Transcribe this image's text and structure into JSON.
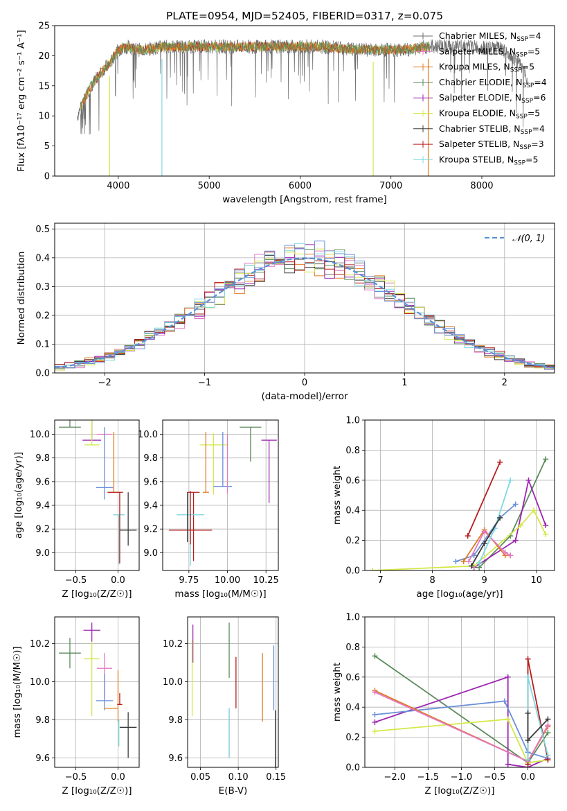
{
  "colors": {
    "chab_miles": "#6e6e6e",
    "salp_miles": "#e377c2",
    "krou_miles": "#e07b22",
    "chab_elodie": "#5b8a5b",
    "salp_elodie": "#9c27b0",
    "krou_elodie": "#d4e848",
    "chab_stelib": "#3a3a3a",
    "salp_stelib": "#b71c1c",
    "krou_stelib": "#7fd8e0",
    "blue": "#6a8fd8",
    "gaussian": "#5b8fd8"
  },
  "chart_data": [
    {
      "id": "spectrum",
      "type": "line",
      "title": "PLATE=0954, MJD=52405, FIBERID=0317, z=0.075",
      "xlabel": "wavelength [Angstrom, rest frame]",
      "ylabel": "Flux [fλ10⁻¹⁷ erg cm⁻² s⁻¹ A⁻¹]",
      "xlim": [
        3300,
        8800
      ],
      "ylim": [
        0,
        25
      ],
      "xticks": [
        4000,
        5000,
        6000,
        7000,
        8000
      ],
      "yticks": [
        0,
        5,
        10,
        15,
        20,
        25
      ],
      "grid": false,
      "legend_position": "right",
      "legend": [
        {
          "label": "Chabrier MILES, Nₛₛₚ=4",
          "base": "Chabrier MILES, N",
          "sub": "SSP",
          "tail": "=4",
          "color_key": "chab_miles"
        },
        {
          "label": "Salpeter MILES, Nₛₛₚ=5",
          "base": "Salpeter MILES, N",
          "sub": "SSP",
          "tail": "=5",
          "color_key": "salp_miles"
        },
        {
          "label": "Kroupa MILES, Nₛₛₚ=5",
          "base": "Kroupa MILES, N",
          "sub": "SSP",
          "tail": "=5",
          "color_key": "krou_miles"
        },
        {
          "label": "Chabrier ELODIE, Nₛₛₚ=4",
          "base": "Chabrier ELODIE, N",
          "sub": "SSP",
          "tail": "=4",
          "color_key": "chab_elodie"
        },
        {
          "label": "Salpeter ELODIE, Nₛₛₚ=6",
          "base": "Salpeter ELODIE, N",
          "sub": "SSP",
          "tail": "=6",
          "color_key": "salp_elodie"
        },
        {
          "label": "Kroupa ELODIE, Nₛₛₚ=5",
          "base": "Kroupa ELODIE, N",
          "sub": "SSP",
          "tail": "=5",
          "color_key": "krou_elodie"
        },
        {
          "label": "Chabrier STELIB, Nₛₛₚ=4",
          "base": "Chabrier STELIB, N",
          "sub": "SSP",
          "tail": "=4",
          "color_key": "chab_stelib"
        },
        {
          "label": "Salpeter STELIB, Nₛₛₚ=3",
          "base": "Salpeter STELIB, N",
          "sub": "SSP",
          "tail": "=3",
          "color_key": "salp_stelib"
        },
        {
          "label": "Kroupa STELIB, Nₛₛₚ=5",
          "base": "Kroupa STELIB, N",
          "sub": "SSP",
          "tail": "=5",
          "color_key": "krou_stelib"
        }
      ],
      "data_x": [
        3550,
        3600,
        3700,
        3800,
        3850,
        3900,
        4000,
        4100,
        4200,
        4300,
        4400,
        4500,
        4700,
        4900,
        5000,
        5200,
        5400,
        5600,
        5800,
        6000,
        6200,
        6400,
        6600,
        6800,
        7000,
        7200,
        7400,
        7600,
        7800,
        8000,
        8200,
        8400,
        8500
      ],
      "data_y": [
        10,
        12,
        15,
        17,
        18,
        18.5,
        21,
        21.5,
        21,
        21,
        21.3,
        21.5,
        21.5,
        21.5,
        21.5,
        21.5,
        21.5,
        21.5,
        21.5,
        21.5,
        21.5,
        21.3,
        21,
        21,
        21,
        21,
        21.5,
        21.7,
        21.7,
        21.3,
        21.2,
        19,
        16
      ],
      "model_xrange": [
        3580,
        7420
      ],
      "dips": [
        {
          "x": 3905,
          "y": 0,
          "color_key": "krou_elodie"
        },
        {
          "x": 4480,
          "y": 0,
          "color_key": "krou_stelib"
        },
        {
          "x": 6805,
          "y": 0,
          "color_key": "krou_elodie"
        },
        {
          "x": 7410,
          "y": 0,
          "color_key": "krou_miles"
        }
      ]
    },
    {
      "id": "residuals",
      "type": "line",
      "xlabel": "(data-model)/error",
      "ylabel": "Normed distribution",
      "xlim": [
        -2.5,
        2.5
      ],
      "ylim": [
        0,
        0.52
      ],
      "xticks": [
        -2,
        -1,
        0,
        1,
        2
      ],
      "yticks": [
        0.0,
        0.1,
        0.2,
        0.3,
        0.4,
        0.5
      ],
      "grid": true,
      "legend_position": "top-right",
      "gaussian_label": "𝒩(0, 1)",
      "bin_edges_range": [
        -2.5,
        2.5
      ],
      "bin_count": 50,
      "hist_colors": [
        "chab_miles",
        "salp_miles",
        "krou_miles",
        "chab_elodie",
        "salp_elodie",
        "krou_elodie",
        "chab_stelib",
        "salp_stelib",
        "krou_stelib",
        "blue"
      ]
    },
    {
      "id": "z_vs_age",
      "type": "scatter",
      "xlabel": "Z [log₁₀(Z/Z☉)]",
      "ylabel": "age [log₁₀(age/yr)]",
      "xlim": [
        -0.75,
        0.25
      ],
      "ylim": [
        8.85,
        10.12
      ],
      "xticks": [
        -0.5,
        0.0
      ],
      "yticks": [
        9.0,
        9.2,
        9.4,
        9.6,
        9.8,
        10.0
      ],
      "grid": true,
      "points": [
        {
          "x": -0.57,
          "xerr": 0.13,
          "y": 10.06,
          "yerr": [
            0.0,
            0.29
          ],
          "color_key": "chab_elodie"
        },
        {
          "x": -0.31,
          "xerr": 0.11,
          "y": 9.95,
          "yerr": [
            0.0,
            0.23
          ],
          "color_key": "salp_elodie"
        },
        {
          "x": -0.31,
          "xerr": 0.09,
          "y": 9.91,
          "yerr": [
            0.0,
            0.54
          ],
          "color_key": "krou_elodie"
        },
        {
          "x": -0.16,
          "xerr": 0.09,
          "y": 10.0,
          "yerr": [
            0.0,
            0.0
          ],
          "color_key": "salp_miles"
        },
        {
          "x": -0.16,
          "xerr": 0.1,
          "y": 9.55,
          "yerr": [
            0.1,
            0.51
          ],
          "color_key": "blue"
        },
        {
          "x": -0.05,
          "xerr": 0.08,
          "y": 9.51,
          "yerr": [
            0.0,
            0.51
          ],
          "color_key": "krou_miles"
        },
        {
          "x": -0.03,
          "xerr": 0.09,
          "y": 9.51,
          "yerr": [
            0.0,
            0.0
          ],
          "color_key": "salp_stelib"
        },
        {
          "x": 0.01,
          "xerr": 0.07,
          "y": 9.32,
          "yerr": [
            0.42,
            0.0
          ],
          "color_key": "krou_stelib"
        },
        {
          "x": 0.02,
          "xerr": 0.0,
          "y": 9.19,
          "yerr": [
            0.28,
            0.32
          ],
          "color_key": "salp_stelib"
        },
        {
          "x": 0.12,
          "xerr": 0.1,
          "y": 9.19,
          "yerr": [
            0.13,
            0.32
          ],
          "color_key": "chab_stelib"
        }
      ]
    },
    {
      "id": "mass_vs_age",
      "type": "scatter",
      "xlabel": "mass [log₁₀(M/M☉)]",
      "xlim": [
        9.58,
        10.33
      ],
      "ylim": [
        8.85,
        10.12
      ],
      "xticks": [
        9.75,
        10.0,
        10.25
      ],
      "xticklabels": [
        "9.75",
        "10.00",
        "10.25"
      ],
      "yticks": [
        9.0,
        9.2,
        9.4,
        9.6,
        9.8,
        10.0
      ],
      "grid": true,
      "points": [
        {
          "x": 10.15,
          "xerr": 0.07,
          "y": 10.06,
          "yerr": [
            0.29,
            0.0
          ],
          "color_key": "chab_elodie"
        },
        {
          "x": 10.27,
          "xerr": 0.05,
          "y": 9.95,
          "yerr": [
            0.53,
            0.0
          ],
          "color_key": "salp_elodie"
        },
        {
          "x": 9.91,
          "xerr": 0.09,
          "y": 9.91,
          "yerr": [
            0.42,
            0.1
          ],
          "color_key": "krou_elodie"
        },
        {
          "x": 9.97,
          "xerr": 0.06,
          "y": 9.56,
          "yerr": [
            0.0,
            0.46
          ],
          "color_key": "blue"
        },
        {
          "x": 10.0,
          "xerr": 0.0,
          "y": 9.5,
          "yerr": [
            0.0,
            0.5
          ],
          "color_key": "salp_miles"
        },
        {
          "x": 9.86,
          "xerr": 0.02,
          "y": 9.51,
          "yerr": [
            0.0,
            0.51
          ],
          "color_key": "krou_miles"
        },
        {
          "x": 9.78,
          "xerr": 0.04,
          "y": 9.51,
          "yerr": [
            0.58,
            0.0
          ],
          "color_key": "salp_stelib"
        },
        {
          "x": 9.76,
          "xerr": 0.09,
          "y": 9.32,
          "yerr": [
            0.43,
            0.0
          ],
          "color_key": "krou_stelib"
        },
        {
          "x": 9.76,
          "xerr": 0.14,
          "y": 9.19,
          "yerr": [
            0.12,
            0.33
          ],
          "color_key": "salp_stelib"
        },
        {
          "x": 9.74,
          "xerr": 0.0,
          "y": 9.19,
          "yerr": [
            0.1,
            0.32
          ],
          "color_key": "chab_stelib"
        }
      ]
    },
    {
      "id": "age_vs_weight",
      "type": "line",
      "xlabel": "age [log₁₀(age/yr)]",
      "ylabel": "mass weight",
      "xlim": [
        6.7,
        10.35
      ],
      "ylim": [
        0,
        1.0
      ],
      "xticks": [
        7,
        8,
        9,
        10
      ],
      "yticks": [
        0.0,
        0.2,
        0.4,
        0.6,
        0.8,
        1.0
      ],
      "grid": true,
      "series": [
        {
          "color_key": "chab_elodie",
          "x": [
            8.9,
            9.5,
            10.18
          ],
          "y": [
            0.02,
            0.23,
            0.74
          ]
        },
        {
          "color_key": "salp_elodie",
          "x": [
            8.8,
            9.6,
            9.85,
            10.18
          ],
          "y": [
            0.02,
            0.2,
            0.6,
            0.3
          ]
        },
        {
          "color_key": "krou_elodie",
          "x": [
            6.85,
            8.8,
            9.7,
            9.95,
            10.18
          ],
          "y": [
            0.0,
            0.03,
            0.3,
            0.4,
            0.24
          ]
        },
        {
          "color_key": "blue",
          "x": [
            8.45,
            8.8,
            9.3,
            9.6
          ],
          "y": [
            0.06,
            0.1,
            0.35,
            0.44
          ]
        },
        {
          "color_key": "krou_miles",
          "x": [
            8.6,
            9.0,
            9.4,
            9.5
          ],
          "y": [
            0.06,
            0.27,
            0.1,
            0.1
          ]
        },
        {
          "color_key": "salp_miles",
          "x": [
            8.7,
            9.0,
            9.4,
            9.5
          ],
          "y": [
            0.06,
            0.26,
            0.12,
            0.1
          ]
        },
        {
          "color_key": "salp_stelib",
          "x": [
            8.68,
            9.3
          ],
          "y": [
            0.23,
            0.72
          ]
        },
        {
          "color_key": "krou_stelib",
          "x": [
            8.9,
            9.2,
            9.5
          ],
          "y": [
            0.05,
            0.28,
            0.6
          ]
        },
        {
          "color_key": "chab_stelib",
          "x": [
            8.75,
            9.0,
            9.3
          ],
          "y": [
            0.03,
            0.18,
            0.35
          ]
        }
      ]
    },
    {
      "id": "z_vs_mass",
      "type": "scatter",
      "xlabel": "Z [log₁₀(Z/Z☉)]",
      "ylabel": "mass [log₁₀(M/M☉)]",
      "xlim": [
        -0.75,
        0.25
      ],
      "ylim": [
        9.55,
        10.34
      ],
      "xticks": [
        -0.5,
        0.0
      ],
      "yticks": [
        9.6,
        9.8,
        10.0,
        10.2
      ],
      "grid": true,
      "points": [
        {
          "x": -0.57,
          "xerr": 0.13,
          "y": 10.15,
          "yerr": [
            0.08,
            0.08
          ],
          "color_key": "chab_elodie"
        },
        {
          "x": -0.31,
          "xerr": 0.1,
          "y": 10.27,
          "yerr": [
            0.06,
            0.04
          ],
          "color_key": "salp_elodie"
        },
        {
          "x": -0.31,
          "xerr": 0.09,
          "y": 10.12,
          "yerr": [
            0.3,
            0.09
          ],
          "color_key": "krou_elodie"
        },
        {
          "x": -0.16,
          "xerr": 0.09,
          "y": 10.07,
          "yerr": [
            0.16,
            0.08
          ],
          "color_key": "salp_miles"
        },
        {
          "x": -0.16,
          "xerr": 0.1,
          "y": 9.9,
          "yerr": [
            0.05,
            0.14
          ],
          "color_key": "blue"
        },
        {
          "x": -0.08,
          "xerr": 0.08,
          "y": 9.86,
          "yerr": [
            0.0,
            0.0
          ],
          "color_key": "krou_miles"
        },
        {
          "x": 0.0,
          "xerr": 0.0,
          "y": 9.95,
          "yerr": [
            0.16,
            0.11
          ],
          "color_key": "krou_miles"
        },
        {
          "x": 0.02,
          "xerr": 0.03,
          "y": 9.88,
          "yerr": [
            0.0,
            0.06
          ],
          "color_key": "salp_stelib"
        },
        {
          "x": 0.01,
          "xerr": 0.0,
          "y": 9.8,
          "yerr": [
            0.14,
            0.0
          ],
          "color_key": "krou_stelib"
        },
        {
          "x": 0.12,
          "xerr": 0.1,
          "y": 9.76,
          "yerr": [
            0.16,
            0.08
          ],
          "color_key": "chab_stelib"
        }
      ]
    },
    {
      "id": "ebv_vs_mass",
      "type": "scatter",
      "xlabel": "E(B-V)",
      "xlim": [
        0.033,
        0.153
      ],
      "ylim": [
        9.55,
        10.34
      ],
      "xticks": [
        0.05,
        0.1,
        0.15
      ],
      "xticklabels": [
        "0.05",
        "0.10",
        "0.15"
      ],
      "yticks": [
        9.6,
        9.8,
        10.0,
        10.2
      ],
      "grid": true,
      "points": [
        {
          "x": 0.04,
          "xerr": 0.0,
          "y": 10.2,
          "yerr": [
            0.1,
            0.1
          ],
          "color_key": "salp_elodie"
        },
        {
          "x": 0.039,
          "xerr": 0.0,
          "y": 10.06,
          "yerr": [
            0.24,
            0.16
          ],
          "color_key": "krou_elodie"
        },
        {
          "x": 0.088,
          "xerr": 0.0,
          "y": 10.18,
          "yerr": [
            0.16,
            0.13
          ],
          "color_key": "chab_elodie"
        },
        {
          "x": 0.088,
          "xerr": 0.0,
          "y": 9.8,
          "yerr": [
            0.2,
            0.06
          ],
          "color_key": "salp_miles"
        },
        {
          "x": 0.088,
          "xerr": 0.0,
          "y": 9.76,
          "yerr": [
            0.16,
            0.1
          ],
          "color_key": "krou_stelib"
        },
        {
          "x": 0.097,
          "xerr": 0.0,
          "y": 10.0,
          "yerr": [
            0.14,
            0.13
          ],
          "color_key": "salp_stelib"
        },
        {
          "x": 0.132,
          "xerr": 0.0,
          "y": 9.97,
          "yerr": [
            0.18,
            0.18
          ],
          "color_key": "krou_miles"
        },
        {
          "x": 0.147,
          "xerr": 0.0,
          "y": 10.0,
          "yerr": [
            0.15,
            0.19
          ],
          "color_key": "blue"
        },
        {
          "x": 0.149,
          "xerr": 0.0,
          "y": 9.75,
          "yerr": [
            0.2,
            0.1
          ],
          "color_key": "chab_stelib"
        }
      ]
    },
    {
      "id": "z_vs_weight",
      "type": "line",
      "xlabel": "Z [log₁₀(Z/Z☉)]",
      "ylabel": "mass weight",
      "xlim": [
        -2.45,
        0.4
      ],
      "ylim": [
        0,
        1.0
      ],
      "xticks": [
        -2.0,
        -1.5,
        -1.0,
        -0.5,
        0.0
      ],
      "xticklabels": [
        "−2.0",
        "−1.5",
        "−1.0",
        "−0.5",
        "0.0"
      ],
      "yticks": [
        0.0,
        0.2,
        0.4,
        0.6,
        0.8,
        1.0
      ],
      "grid": true,
      "series": [
        {
          "color_key": "chab_elodie",
          "x": [
            -2.3,
            0.0,
            0.3
          ],
          "y": [
            0.74,
            0.03,
            0.23
          ]
        },
        {
          "color_key": "salp_elodie",
          "x": [
            -2.3,
            -0.3,
            -0.3,
            0.0,
            0.3
          ],
          "y": [
            0.3,
            0.6,
            0.02,
            0.0,
            0.06
          ]
        },
        {
          "color_key": "krou_elodie",
          "x": [
            -2.3,
            -0.3,
            0.0,
            0.3
          ],
          "y": [
            0.24,
            0.32,
            0.03,
            0.05
          ]
        },
        {
          "color_key": "blue",
          "x": [
            -2.3,
            -0.35,
            0.0,
            0.3
          ],
          "y": [
            0.35,
            0.44,
            0.1,
            0.06
          ]
        },
        {
          "color_key": "krou_miles",
          "x": [
            -2.3,
            0.0,
            0.3
          ],
          "y": [
            0.51,
            0.04,
            0.27
          ]
        },
        {
          "color_key": "salp_miles",
          "x": [
            -2.3,
            0.0,
            0.3
          ],
          "y": [
            0.5,
            0.04,
            0.28
          ]
        },
        {
          "color_key": "salp_stelib",
          "x": [
            0.0,
            0.0,
            0.3
          ],
          "y": [
            0.02,
            0.72,
            0.05
          ]
        },
        {
          "color_key": "krou_stelib",
          "x": [
            0.0,
            0.0,
            0.3
          ],
          "y": [
            0.05,
            0.6,
            0.08
          ]
        },
        {
          "color_key": "chab_stelib",
          "x": [
            0.0,
            0.0,
            0.3
          ],
          "y": [
            0.36,
            0.18,
            0.32
          ]
        }
      ]
    }
  ]
}
